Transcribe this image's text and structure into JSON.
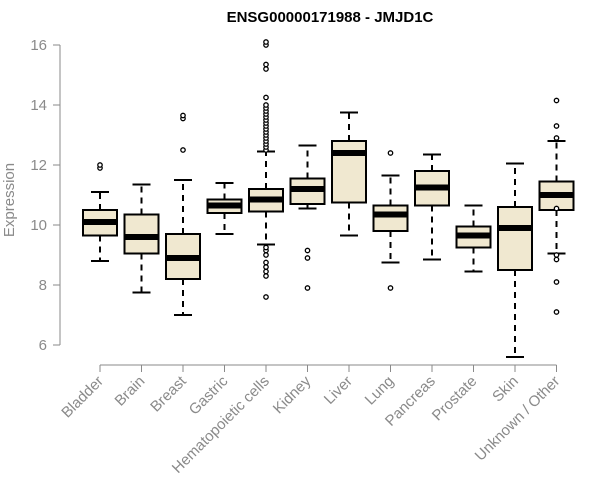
{
  "chart_data": {
    "type": "boxplot",
    "title": "ENSG00000171988 - JMJD1C",
    "xlabel": "",
    "ylabel": "Expression",
    "ylim": [
      5.6,
      16.3
    ],
    "yticks": [
      6,
      8,
      10,
      12,
      14,
      16
    ],
    "grid": false,
    "box_color": "#f0e8d0",
    "categories": [
      "Bladder",
      "Brain",
      "Breast",
      "Gastric",
      "Hematopoietic cells",
      "Kidney",
      "Liver",
      "Lung",
      "Pancreas",
      "Prostate",
      "Skin",
      "Unknown / Other"
    ],
    "tick_labels": [
      "Bladder",
      "Brain",
      "Breast",
      "Gastric",
      "Hematopoietic cells",
      "Kidney",
      "Liver",
      "Lung",
      "Pancreas",
      "Prostate",
      "Skin",
      "Unknown / Other"
    ],
    "boxes": [
      {
        "name": "Bladder",
        "whisker_low": 8.8,
        "q1": 9.65,
        "median": 10.1,
        "q3": 10.5,
        "whisker_high": 11.1,
        "outliers": [
          11.9,
          12.0
        ]
      },
      {
        "name": "Brain",
        "whisker_low": 7.75,
        "q1": 9.05,
        "median": 9.6,
        "q3": 10.35,
        "whisker_high": 11.35,
        "outliers": []
      },
      {
        "name": "Breast",
        "whisker_low": 7.0,
        "q1": 8.2,
        "median": 8.9,
        "q3": 9.7,
        "whisker_high": 11.5,
        "outliers": [
          12.5,
          13.55,
          13.65
        ]
      },
      {
        "name": "Gastric",
        "whisker_low": 9.7,
        "q1": 10.4,
        "median": 10.65,
        "q3": 10.85,
        "whisker_high": 11.4,
        "outliers": []
      },
      {
        "name": "Hematopoietic cells",
        "whisker_low": 9.35,
        "q1": 10.45,
        "median": 10.85,
        "q3": 11.2,
        "whisker_high": 12.45,
        "outliers": [
          7.6,
          8.3,
          8.45,
          8.6,
          8.75,
          9.0,
          9.15,
          9.25,
          12.5,
          12.6,
          12.7,
          12.8,
          12.9,
          13.0,
          13.1,
          13.2,
          13.3,
          13.4,
          13.5,
          13.6,
          13.7,
          13.8,
          13.9,
          14.0,
          14.25,
          15.2,
          15.35,
          16.0,
          16.1
        ]
      },
      {
        "name": "Kidney",
        "whisker_low": 10.55,
        "q1": 10.7,
        "median": 11.2,
        "q3": 11.55,
        "whisker_high": 12.65,
        "outliers": [
          7.9,
          8.9,
          9.15
        ]
      },
      {
        "name": "Liver",
        "whisker_low": 9.65,
        "q1": 10.75,
        "median": 12.4,
        "q3": 12.8,
        "whisker_high": 13.75,
        "outliers": []
      },
      {
        "name": "Lung",
        "whisker_low": 8.75,
        "q1": 9.8,
        "median": 10.35,
        "q3": 10.65,
        "whisker_high": 11.65,
        "outliers": [
          7.9,
          12.4
        ]
      },
      {
        "name": "Pancreas",
        "whisker_low": 8.85,
        "q1": 10.65,
        "median": 11.25,
        "q3": 11.8,
        "whisker_high": 12.35,
        "outliers": []
      },
      {
        "name": "Prostate",
        "whisker_low": 8.45,
        "q1": 9.25,
        "median": 9.65,
        "q3": 9.95,
        "whisker_high": 10.65,
        "outliers": []
      },
      {
        "name": "Skin",
        "whisker_low": 5.6,
        "q1": 8.5,
        "median": 9.9,
        "q3": 10.6,
        "whisker_high": 12.05,
        "outliers": []
      },
      {
        "name": "Unknown / Other",
        "whisker_low": 9.05,
        "q1": 10.5,
        "median": 11.0,
        "q3": 11.45,
        "whisker_high": 12.8,
        "outliers": [
          7.1,
          8.1,
          8.85,
          9.0,
          10.55,
          12.9,
          13.3,
          14.15
        ]
      }
    ]
  }
}
